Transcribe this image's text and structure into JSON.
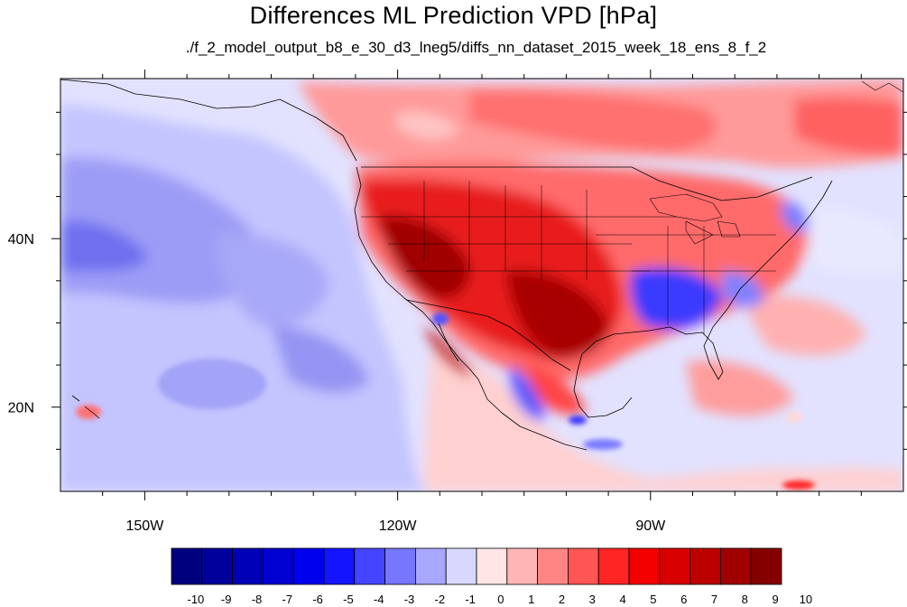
{
  "title": "Differences ML Prediction VPD [hPa]",
  "subtitle": "./f_2_model_output_b8_e_30_d3_lneg5/diffs_nn_dataset_2015_week_18_ens_8_f_2",
  "map": {
    "lon_range": [
      -160,
      -60
    ],
    "lat_range": [
      10,
      59
    ],
    "x_ticks": [
      {
        "lon": -150,
        "label": "150W"
      },
      {
        "lon": -120,
        "label": "120W"
      },
      {
        "lon": -90,
        "label": "90W"
      }
    ],
    "y_ticks": [
      {
        "lat": 40,
        "label": "40N"
      },
      {
        "lat": 20,
        "label": "20N"
      }
    ]
  },
  "colorbar": {
    "labels": [
      "-10",
      "-9",
      "-8",
      "-7",
      "-6",
      "-5",
      "-4",
      "-3",
      "-2",
      "-1",
      "0",
      "1",
      "2",
      "3",
      "4",
      "5",
      "6",
      "7",
      "8",
      "9",
      "10"
    ],
    "colors": [
      "#00007f",
      "#00009b",
      "#0000b7",
      "#0000d3",
      "#0000ef",
      "#1414ff",
      "#4545ff",
      "#7676ff",
      "#a7a7ff",
      "#d8d8ff",
      "#ffe5e5",
      "#ffb5b5",
      "#ff8585",
      "#ff5555",
      "#ff2525",
      "#f40000",
      "#d80000",
      "#bc0000",
      "#a00000",
      "#840000"
    ]
  }
}
